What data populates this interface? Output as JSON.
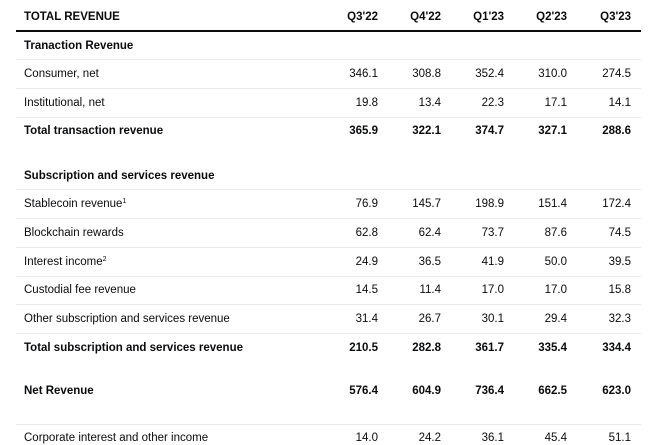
{
  "header": {
    "title": "TOTAL REVENUE",
    "columns": [
      "Q3'22",
      "Q4'22",
      "Q1'23",
      "Q2'23",
      "Q3'23"
    ]
  },
  "sections": {
    "transaction": {
      "title": "Tranaction Revenue",
      "rows": [
        {
          "label": "Consumer, net",
          "values": [
            "346.1",
            "308.8",
            "352.4",
            "310.0",
            "274.5"
          ]
        },
        {
          "label": "Institutional, net",
          "values": [
            "19.8",
            "13.4",
            "22.3",
            "17.1",
            "14.1"
          ]
        }
      ],
      "total": {
        "label": "Total transaction revenue",
        "values": [
          "365.9",
          "322.1",
          "374.7",
          "327.1",
          "288.6"
        ]
      }
    },
    "subscription": {
      "title": "Subscription and services revenue",
      "rows": [
        {
          "label": "Stablecoin revenue",
          "footnote": "1",
          "values": [
            "76.9",
            "145.7",
            "198.9",
            "151.4",
            "172.4"
          ]
        },
        {
          "label": "Blockchain rewards",
          "footnote": "",
          "values": [
            "62.8",
            "62.4",
            "73.7",
            "87.6",
            "74.5"
          ]
        },
        {
          "label": "Interest income",
          "footnote": "2",
          "values": [
            "24.9",
            "36.5",
            "41.9",
            "50.0",
            "39.5"
          ]
        },
        {
          "label": "Custodial fee revenue",
          "footnote": "",
          "values": [
            "14.5",
            "11.4",
            "17.0",
            "17.0",
            "15.8"
          ]
        },
        {
          "label": "Other subscription and services revenue",
          "footnote": "",
          "values": [
            "31.4",
            "26.7",
            "30.1",
            "29.4",
            "32.3"
          ]
        }
      ],
      "total": {
        "label": "Total subscription and services revenue",
        "values": [
          "210.5",
          "282.8",
          "361.7",
          "335.4",
          "334.4"
        ]
      }
    }
  },
  "net_revenue": {
    "label": "Net Revenue",
    "values": [
      "576.4",
      "604.9",
      "736.4",
      "662.5",
      "623.0"
    ]
  },
  "corporate": {
    "label": "Corporate interest and other income",
    "values": [
      "14.0",
      "24.2",
      "36.1",
      "45.4",
      "51.1"
    ]
  }
}
